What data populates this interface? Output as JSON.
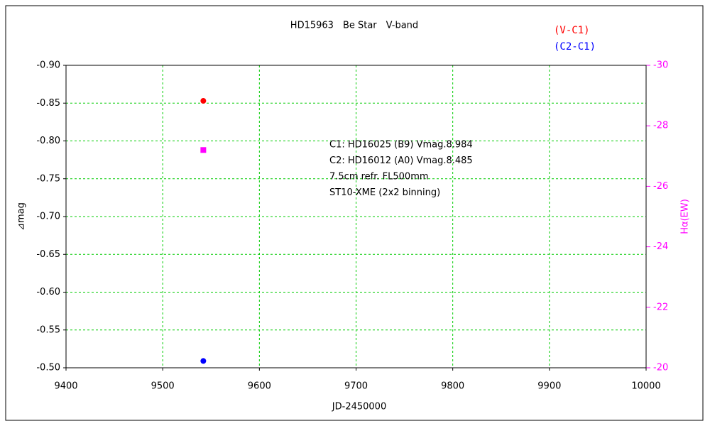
{
  "chart_data": {
    "type": "scatter",
    "title": "HD15963　Be Star　V-band",
    "x_label": "JD-2450000",
    "y_label": "⊿mag",
    "y2_label": "Hα(EW)",
    "annotations": [
      "C1: HD16025 (B9) Vmag.8.984",
      "C2: HD16012 (A0) Vmag.8.485",
      "7.5cm refr. FL500mm",
      "ST10-XME (2x2 binning)"
    ],
    "xlim": [
      9400,
      10000
    ],
    "xticks": [
      9400,
      9500,
      9600,
      9700,
      9800,
      9900,
      10000
    ],
    "ylim": [
      -0.5,
      -0.9
    ],
    "yticks": [
      {
        "value": -0.9,
        "label": "-0.90"
      },
      {
        "value": -0.85,
        "label": "-0.85"
      },
      {
        "value": -0.8,
        "label": "-0.80"
      },
      {
        "value": -0.75,
        "label": "-0.75"
      },
      {
        "value": -0.7,
        "label": "-0.70"
      },
      {
        "value": -0.65,
        "label": "-0.65"
      },
      {
        "value": -0.6,
        "label": "-0.60"
      },
      {
        "value": -0.55,
        "label": "-0.55"
      },
      {
        "value": -0.5,
        "label": "-0.50"
      }
    ],
    "y2lim": [
      -20,
      -30
    ],
    "y2ticks": [
      -30,
      -28,
      -26,
      -24,
      -22,
      -20
    ],
    "y2_color": "#ff00ff",
    "grid": true,
    "series": [
      {
        "name": "(V-C1)",
        "color": "#ff0000",
        "marker": "circle",
        "x": [
          9542
        ],
        "values": [
          -0.853
        ]
      },
      {
        "name": "(C2-C1)",
        "color": "#0000ff",
        "marker": "circle",
        "x": [
          9542
        ],
        "values": [
          -0.509
        ]
      },
      {
        "color": "#ff00ff",
        "marker": "square",
        "axis": "y2",
        "x": [
          9542
        ],
        "values": [
          -27.2
        ]
      }
    ]
  }
}
